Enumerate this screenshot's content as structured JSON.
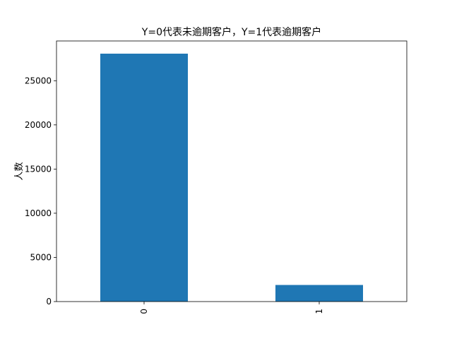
{
  "chart_data": {
    "type": "bar",
    "title": "Y=0代表未逾期客户，Y=1代表逾期客户",
    "xlabel": "",
    "ylabel": "人数",
    "categories": [
      "0",
      "1"
    ],
    "values": [
      28063,
      1879
    ],
    "ylim": [
      0,
      29500
    ],
    "yticks": [
      0,
      5000,
      10000,
      15000,
      20000,
      25000
    ],
    "bar_color": "#1f77b4",
    "grid": false,
    "legend": false
  }
}
